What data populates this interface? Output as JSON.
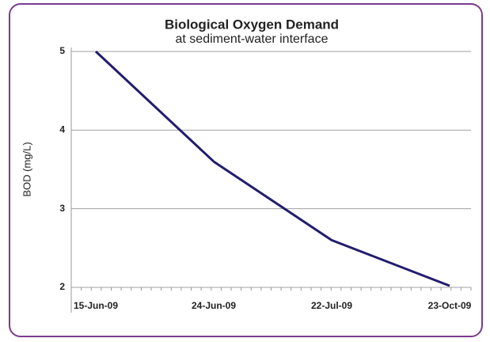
{
  "chart_data": {
    "type": "line",
    "title": "Biological Oxygen Demand",
    "subtitle": "at sediment-water interface",
    "y_label": "BOD (mg/L)",
    "categories": [
      "15-Jun-09",
      "24-Jun-09",
      "22-Jul-09",
      "23-Oct-09"
    ],
    "series": [
      {
        "name": "BOD",
        "color": "#221c6e",
        "values": [
          5,
          3.6,
          2.6,
          2.02
        ]
      }
    ],
    "ylim": [
      2,
      5
    ],
    "yticks": [
      2,
      3,
      4,
      5
    ],
    "grid": true
  }
}
